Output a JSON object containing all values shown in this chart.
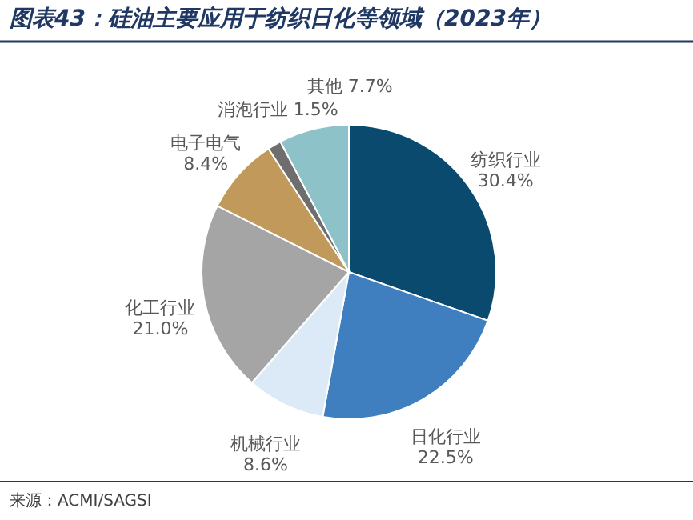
{
  "chart_data": {
    "type": "pie",
    "title": "图表43：硅油主要应用于纺织日化等领域（2023年）",
    "categories": [
      "纺织行业",
      "日化行业",
      "机械行业",
      "化工行业",
      "电子电气",
      "消泡行业",
      "其他"
    ],
    "values": [
      30.4,
      22.5,
      8.6,
      21.0,
      8.4,
      1.5,
      7.7
    ],
    "colors": [
      "#0b4a6f",
      "#3f7fc0",
      "#dce9f6",
      "#a5a5a5",
      "#c19a5b",
      "#6e6e6e",
      "#8ec2c9"
    ],
    "value_labels": [
      "30.4%",
      "22.5%",
      "8.6%",
      "21.0%",
      "8.4%",
      "1.5%",
      "7.7%"
    ],
    "annotations": [
      "来源：ACMI/SAGSI"
    ]
  }
}
